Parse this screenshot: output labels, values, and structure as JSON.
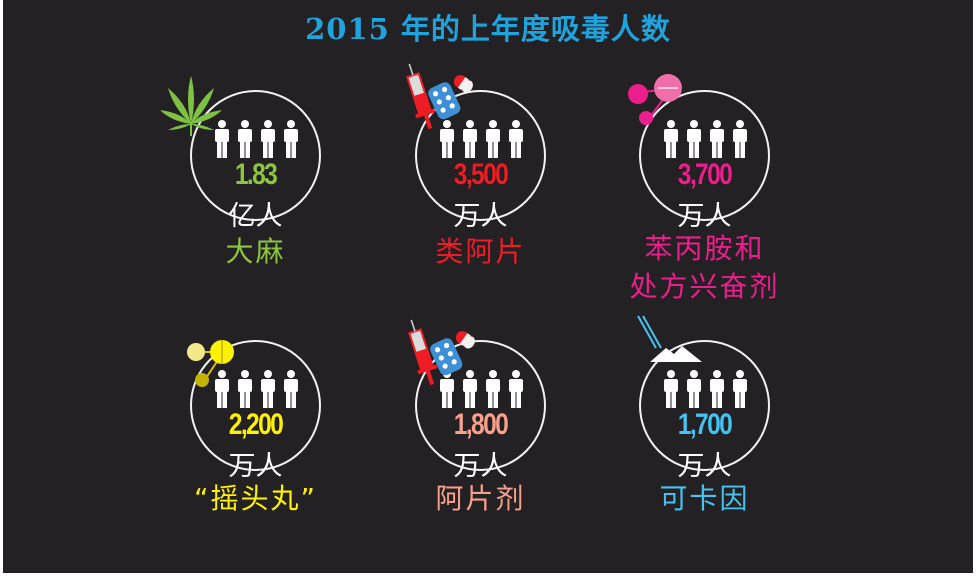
{
  "title": "2015 年的上年度吸毒人数",
  "stats": [
    {
      "value": "1.83",
      "unit": "亿人",
      "label": "大麻",
      "color": "#8cc63f",
      "icon": "cannabis-leaf-icon"
    },
    {
      "value": "3,500",
      "unit": "万人",
      "label": "类阿片",
      "color": "#ee1c24",
      "icon": "syringe-pills-icon"
    },
    {
      "value": "3,700",
      "unit": "万人",
      "label": "苯丙胺和\n处方兴奋剂",
      "color": "#ec1d8c",
      "icon": "pink-pills-icon"
    },
    {
      "value": "2,200",
      "unit": "万人",
      "label": "“摇头丸”",
      "color": "#fff200",
      "icon": "yellow-pills-icon"
    },
    {
      "value": "1,800",
      "unit": "万人",
      "label": "阿片剂",
      "color": "#f7a08b",
      "icon": "syringe-pills-icon"
    },
    {
      "value": "1,700",
      "unit": "万人",
      "label": "可卡因",
      "color": "#45c2ef",
      "icon": "cocaine-line-icon"
    }
  ]
}
